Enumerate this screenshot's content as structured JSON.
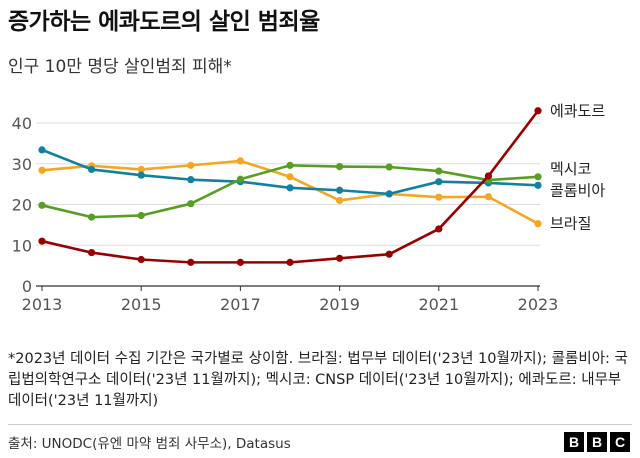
{
  "title": "증가하는 에콰도르의 살인 범죄율",
  "subtitle": "인구 10만 명당 살인범죄 피해*",
  "note": "*2023년 데이터 수집 기간은 국가별로 상이함. 브라질: 법무부 데이터('23년 10월까지); 콜롬비아: 국립법의학연구소 데이터('23년 11월까지); 멕시코: CNSP 데이터('23년 10월까지); 에콰도르: 내무부 데이터('23년 11월까지)",
  "source": "출처: UNODC(유엔 마약 범죄 사무소), Datasus",
  "logo": [
    "B",
    "B",
    "C"
  ],
  "chart_data": {
    "type": "line",
    "x": [
      2013,
      2014,
      2015,
      2016,
      2017,
      2018,
      2019,
      2020,
      2021,
      2022,
      2023
    ],
    "xticks": [
      "2013",
      "2015",
      "2017",
      "2019",
      "2021",
      "2023"
    ],
    "yticks": [
      "0",
      "10",
      "20",
      "30",
      "40"
    ],
    "ylim": [
      0,
      45
    ],
    "grid": true,
    "series": [
      {
        "name": "에콰도르",
        "color": "#990000",
        "values": [
          11,
          8.2,
          6.5,
          5.8,
          5.8,
          5.8,
          6.8,
          7.8,
          14,
          27,
          43
        ]
      },
      {
        "name": "멕시코",
        "color": "#589e22",
        "values": [
          19.8,
          16.9,
          17.3,
          20.2,
          26.2,
          29.6,
          29.3,
          29.2,
          28.2,
          26,
          26.8
        ]
      },
      {
        "name": "콜롬비아",
        "color": "#1380a1",
        "values": [
          33.4,
          28.6,
          27.2,
          26.1,
          25.6,
          24.1,
          23.5,
          22.6,
          25.6,
          25.3,
          24.7
        ]
      },
      {
        "name": "브라질",
        "color": "#f5a623",
        "values": [
          28.4,
          29.5,
          28.6,
          29.6,
          30.7,
          26.8,
          21,
          22.6,
          21.8,
          21.9,
          15.3
        ]
      }
    ]
  }
}
